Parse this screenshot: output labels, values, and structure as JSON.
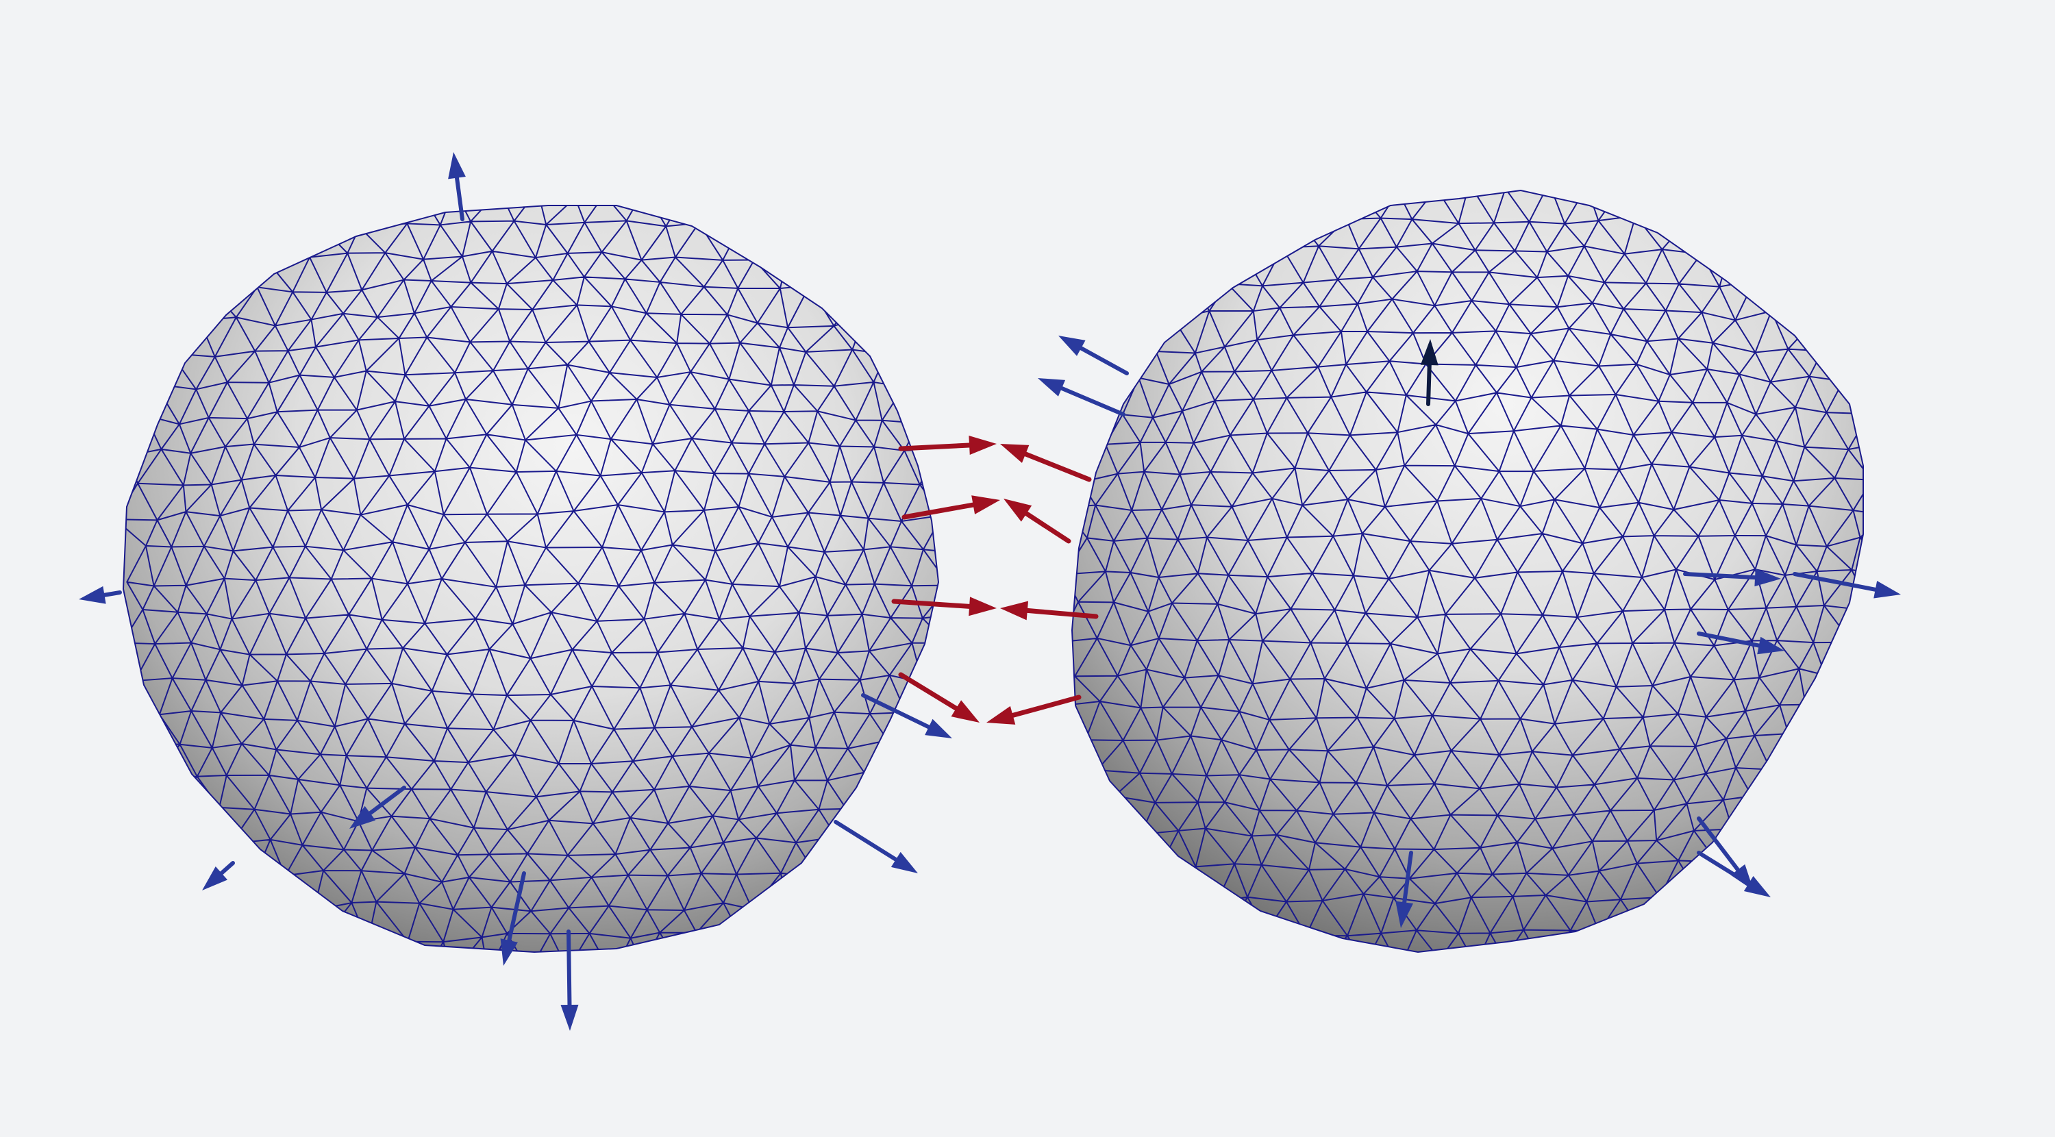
{
  "scene": {
    "background": "#f2f3f5",
    "mesh_edge_color": "#1a1a8c",
    "normal_arrow_color": "#2a3a9e",
    "contact_arrow_color": "#a01020",
    "highlight_arrow_color": "#0d1a40"
  },
  "objects": [
    {
      "name": "left-sphere",
      "icon": "triangulated-sphere"
    },
    {
      "name": "right-sphere",
      "icon": "triangulated-sphere"
    }
  ],
  "arrows": {
    "outward_normals": "blue",
    "contact_forces": "red"
  }
}
